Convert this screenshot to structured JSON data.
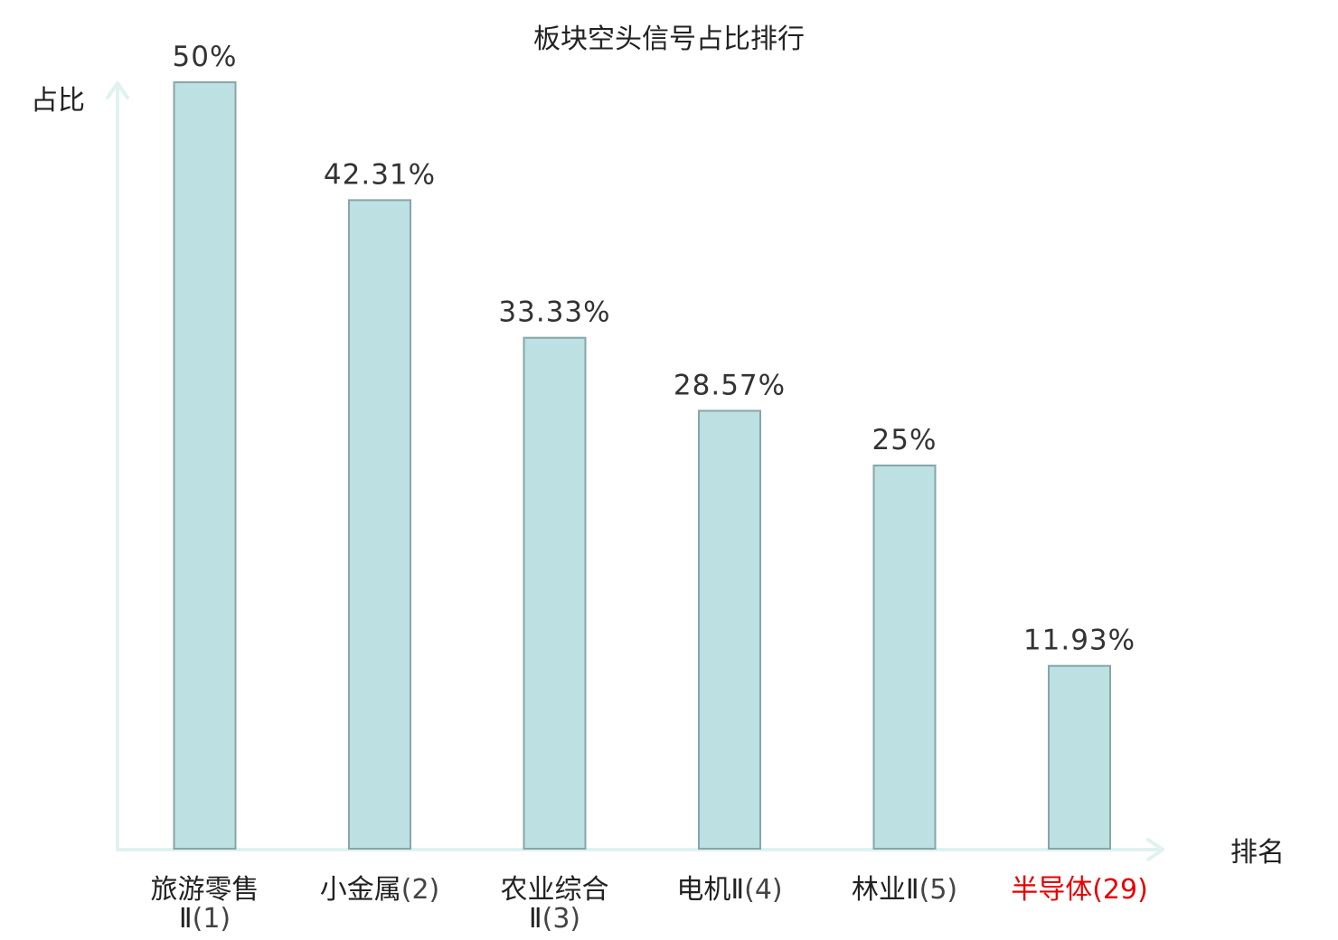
{
  "chart_data": {
    "type": "bar",
    "title": "板块空头信号占比排行",
    "ylabel": "占比",
    "xlabel": "排名",
    "categories": [
      {
        "name_lines": [
          "旅游零售",
          "Ⅱ"
        ],
        "rank": "(1)",
        "highlight": false
      },
      {
        "name_lines": [
          "小金属"
        ],
        "rank": "(2)",
        "highlight": false
      },
      {
        "name_lines": [
          "农业综合",
          "Ⅱ"
        ],
        "rank": "(3)",
        "highlight": false
      },
      {
        "name_lines": [
          "电机Ⅱ"
        ],
        "rank": "(4)",
        "highlight": false
      },
      {
        "name_lines": [
          "林业Ⅱ"
        ],
        "rank": "(5)",
        "highlight": false
      },
      {
        "name_lines": [
          "半导体"
        ],
        "rank": "(29)",
        "highlight": true
      }
    ],
    "values": [
      50,
      42.31,
      33.33,
      28.57,
      25,
      11.93
    ],
    "value_labels": [
      "50%",
      "42.31%",
      "33.33%",
      "28.57%",
      "25%",
      "11.93%"
    ],
    "ylim": [
      0,
      50
    ],
    "grid": false,
    "colors": {
      "bar_fill": "#bde0e3",
      "bar_stroke": "#86a6a8",
      "axis": "#dff2f0",
      "highlight": "#e60000"
    }
  }
}
